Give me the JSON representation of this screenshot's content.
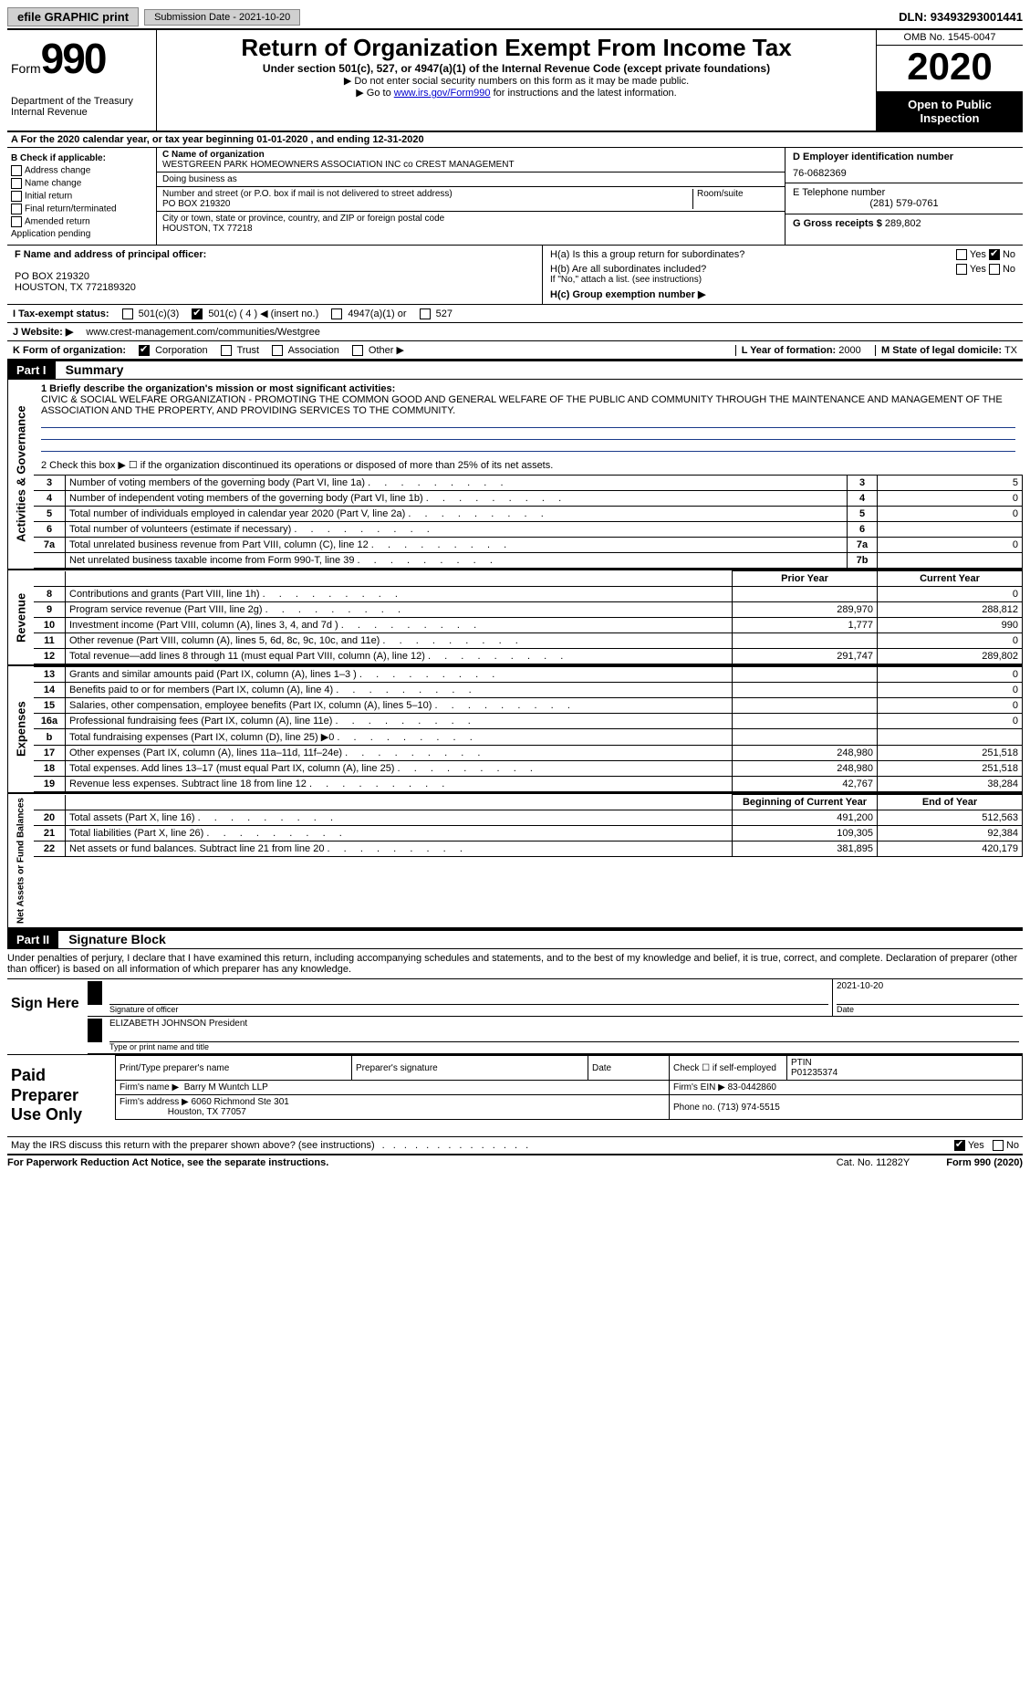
{
  "toolbar": {
    "efile_label": "efile GRAPHIC print",
    "submission_label": "Submission Date - 2021-10-20",
    "dln": "DLN: 93493293001441"
  },
  "header": {
    "form_prefix": "Form",
    "form_number": "990",
    "dept": "Department of the Treasury\nInternal Revenue",
    "title": "Return of Organization Exempt From Income Tax",
    "subtitle": "Under section 501(c), 527, or 4947(a)(1) of the Internal Revenue Code (except private foundations)",
    "note1": "▶ Do not enter social security numbers on this form as it may be made public.",
    "note2_pre": "▶ Go to ",
    "note2_link": "www.irs.gov/Form990",
    "note2_post": " for instructions and the latest information.",
    "omb": "OMB No. 1545-0047",
    "year": "2020",
    "open_inspect": "Open to Public Inspection"
  },
  "lineA": "A For the 2020 calendar year, or tax year beginning 01-01-2020   , and ending 12-31-2020",
  "sectionB": {
    "title": "B Check if applicable:",
    "addr_change": "Address change",
    "name_change": "Name change",
    "initial": "Initial return",
    "final": "Final return/terminated",
    "amended": "Amended return",
    "app_pending": "Application pending"
  },
  "sectionC": {
    "label": "C Name of organization",
    "name": "WESTGREEN PARK HOMEOWNERS ASSOCIATION INC co CREST MANAGEMENT",
    "dba_label": "Doing business as",
    "addr_label": "Number and street (or P.O. box if mail is not delivered to street address)",
    "room_label": "Room/suite",
    "addr": "PO BOX 219320",
    "city_label": "City or town, state or province, country, and ZIP or foreign postal code",
    "city": "HOUSTON, TX  77218"
  },
  "sectionD": {
    "label": "D Employer identification number",
    "value": "76-0682369"
  },
  "sectionE": {
    "label": "E Telephone number",
    "value": "(281) 579-0761"
  },
  "sectionG": {
    "label": "G Gross receipts $",
    "value": "289,802"
  },
  "sectionF": {
    "label": "F  Name and address of principal officer:",
    "line1": "PO BOX 219320",
    "line2": "HOUSTON, TX  772189320"
  },
  "sectionH": {
    "ha": "H(a)  Is this a group return for subordinates?",
    "hb": "H(b)  Are all subordinates included?",
    "hb_note": "If \"No,\" attach a list. (see instructions)",
    "hc": "H(c)  Group exemption number ▶",
    "yes": "Yes",
    "no": "No"
  },
  "sectionI": {
    "label": "I   Tax-exempt status:",
    "opt1": "501(c)(3)",
    "opt2": "501(c) ( 4 ) ◀ (insert no.)",
    "opt3": "4947(a)(1) or",
    "opt4": "527"
  },
  "sectionJ": {
    "label": "J   Website: ▶",
    "value": "www.crest-management.com/communities/Westgree"
  },
  "sectionK": {
    "label": "K Form of organization:",
    "corp": "Corporation",
    "trust": "Trust",
    "assoc": "Association",
    "other": "Other ▶"
  },
  "sectionL": {
    "label": "L Year of formation:",
    "value": "2000"
  },
  "sectionM": {
    "label": "M State of legal domicile:",
    "value": "TX"
  },
  "part1": {
    "part_label": "Part I",
    "title": "Summary",
    "line1_label": "1  Briefly describe the organization's mission or most significant activities:",
    "mission": "CIVIC & SOCIAL WELFARE ORGANIZATION - PROMOTING THE COMMON GOOD AND GENERAL WELFARE OF THE PUBLIC AND COMMUNITY THROUGH THE MAINTENANCE AND MANAGEMENT OF THE ASSOCIATION AND THE PROPERTY, AND PROVIDING SERVICES TO THE COMMUNITY.",
    "vtab_gov": "Activities & Governance",
    "vtab_rev": "Revenue",
    "vtab_exp": "Expenses",
    "vtab_net": "Net Assets or Fund Balances",
    "line2": "2   Check this box ▶ ☐  if the organization discontinued its operations or disposed of more than 25% of its net assets.",
    "lines_gov": [
      {
        "n": "3",
        "text": "Number of voting members of the governing body (Part VI, line 1a)",
        "col": "3",
        "val": "5"
      },
      {
        "n": "4",
        "text": "Number of independent voting members of the governing body (Part VI, line 1b)",
        "col": "4",
        "val": "0"
      },
      {
        "n": "5",
        "text": "Total number of individuals employed in calendar year 2020 (Part V, line 2a)",
        "col": "5",
        "val": "0"
      },
      {
        "n": "6",
        "text": "Total number of volunteers (estimate if necessary)",
        "col": "6",
        "val": ""
      },
      {
        "n": "7a",
        "text": "Total unrelated business revenue from Part VIII, column (C), line 12",
        "col": "7a",
        "val": "0"
      },
      {
        "n": "",
        "text": "Net unrelated business taxable income from Form 990-T, line 39",
        "col": "7b",
        "val": ""
      }
    ],
    "hdr_prior": "Prior Year",
    "hdr_current": "Current Year",
    "lines_rev": [
      {
        "n": "8",
        "text": "Contributions and grants (Part VIII, line 1h)",
        "prior": "",
        "cur": "0"
      },
      {
        "n": "9",
        "text": "Program service revenue (Part VIII, line 2g)",
        "prior": "289,970",
        "cur": "288,812"
      },
      {
        "n": "10",
        "text": "Investment income (Part VIII, column (A), lines 3, 4, and 7d )",
        "prior": "1,777",
        "cur": "990"
      },
      {
        "n": "11",
        "text": "Other revenue (Part VIII, column (A), lines 5, 6d, 8c, 9c, 10c, and 11e)",
        "prior": "",
        "cur": "0"
      },
      {
        "n": "12",
        "text": "Total revenue—add lines 8 through 11 (must equal Part VIII, column (A), line 12)",
        "prior": "291,747",
        "cur": "289,802"
      }
    ],
    "lines_exp": [
      {
        "n": "13",
        "text": "Grants and similar amounts paid (Part IX, column (A), lines 1–3 )",
        "prior": "",
        "cur": "0"
      },
      {
        "n": "14",
        "text": "Benefits paid to or for members (Part IX, column (A), line 4)",
        "prior": "",
        "cur": "0"
      },
      {
        "n": "15",
        "text": "Salaries, other compensation, employee benefits (Part IX, column (A), lines 5–10)",
        "prior": "",
        "cur": "0"
      },
      {
        "n": "16a",
        "text": "Professional fundraising fees (Part IX, column (A), line 11e)",
        "prior": "",
        "cur": "0"
      },
      {
        "n": "b",
        "text": "Total fundraising expenses (Part IX, column (D), line 25) ▶0",
        "prior": "",
        "cur": ""
      },
      {
        "n": "17",
        "text": "Other expenses (Part IX, column (A), lines 11a–11d, 11f–24e)",
        "prior": "248,980",
        "cur": "251,518"
      },
      {
        "n": "18",
        "text": "Total expenses. Add lines 13–17 (must equal Part IX, column (A), line 25)",
        "prior": "248,980",
        "cur": "251,518"
      },
      {
        "n": "19",
        "text": "Revenue less expenses. Subtract line 18 from line 12",
        "prior": "42,767",
        "cur": "38,284"
      }
    ],
    "hdr_begin": "Beginning of Current Year",
    "hdr_end": "End of Year",
    "lines_net": [
      {
        "n": "20",
        "text": "Total assets (Part X, line 16)",
        "prior": "491,200",
        "cur": "512,563"
      },
      {
        "n": "21",
        "text": "Total liabilities (Part X, line 26)",
        "prior": "109,305",
        "cur": "92,384"
      },
      {
        "n": "22",
        "text": "Net assets or fund balances. Subtract line 21 from line 20",
        "prior": "381,895",
        "cur": "420,179"
      }
    ]
  },
  "part2": {
    "part_label": "Part II",
    "title": "Signature Block",
    "penalties": "Under penalties of perjury, I declare that I have examined this return, including accompanying schedules and statements, and to the best of my knowledge and belief, it is true, correct, and complete. Declaration of preparer (other than officer) is based on all information of which preparer has any knowledge.",
    "sign_here": "Sign Here",
    "sig_officer_lbl": "Signature of officer",
    "sig_date": "2021-10-20",
    "sig_date_lbl": "Date",
    "officer_name": "ELIZABETH JOHNSON  President",
    "officer_name_lbl": "Type or print name and title",
    "paid_prep": "Paid Preparer Use Only",
    "print_name_lbl": "Print/Type preparer's name",
    "prep_sig_lbl": "Preparer's signature",
    "date_lbl": "Date",
    "check_self": "Check ☐ if self-employed",
    "ptin_lbl": "PTIN",
    "ptin": "P01235374",
    "firm_name_lbl": "Firm's name     ▶",
    "firm_name": "Barry M Wuntch LLP",
    "firm_ein_lbl": "Firm's EIN ▶",
    "firm_ein": "83-0442860",
    "firm_addr_lbl": "Firm's address ▶",
    "firm_addr1": "6060 Richmond Ste 301",
    "firm_addr2": "Houston, TX  77057",
    "phone_lbl": "Phone no.",
    "phone": "(713) 974-5515",
    "irs_discuss": "May the IRS discuss this return with the preparer shown above? (see instructions)",
    "yes": "Yes",
    "no": "No"
  },
  "footer": {
    "pra": "For Paperwork Reduction Act Notice, see the separate instructions.",
    "cat": "Cat. No. 11282Y",
    "form": "Form 990 (2020)"
  }
}
